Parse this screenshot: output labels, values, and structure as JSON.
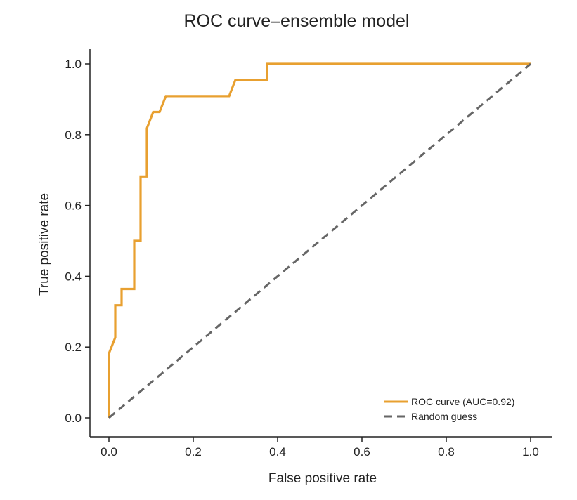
{
  "chart_data": {
    "type": "line",
    "title": "ROC curve–ensemble model",
    "xlabel": "False positive rate",
    "ylabel": "True positive rate",
    "xlim": [
      0.0,
      1.0
    ],
    "ylim": [
      0.0,
      1.0
    ],
    "x_ticks": [
      "0.0",
      "0.2",
      "0.4",
      "0.6",
      "0.8",
      "1.0"
    ],
    "y_ticks": [
      "0.0",
      "0.2",
      "0.4",
      "0.6",
      "0.8",
      "1.0"
    ],
    "grid": false,
    "legend_position": "bottom-right",
    "series": [
      {
        "name": "ROC curve (AUC=0.92)",
        "color": "#e8a030",
        "style": "solid",
        "x": [
          0.0,
          0.0,
          0.015,
          0.015,
          0.03,
          0.03,
          0.06,
          0.06,
          0.075,
          0.075,
          0.09,
          0.09,
          0.105,
          0.105,
          0.12,
          0.135,
          0.135,
          0.285,
          0.3,
          0.3,
          0.375,
          0.375,
          1.0
        ],
        "y": [
          0.0,
          0.182,
          0.227,
          0.318,
          0.318,
          0.364,
          0.364,
          0.5,
          0.5,
          0.682,
          0.682,
          0.818,
          0.864,
          0.864,
          0.864,
          0.909,
          0.909,
          0.909,
          0.955,
          0.955,
          0.955,
          1.0,
          1.0
        ]
      },
      {
        "name": "Random guess",
        "color": "#666666",
        "style": "dashed",
        "x": [
          0.0,
          1.0
        ],
        "y": [
          0.0,
          1.0
        ]
      }
    ]
  }
}
